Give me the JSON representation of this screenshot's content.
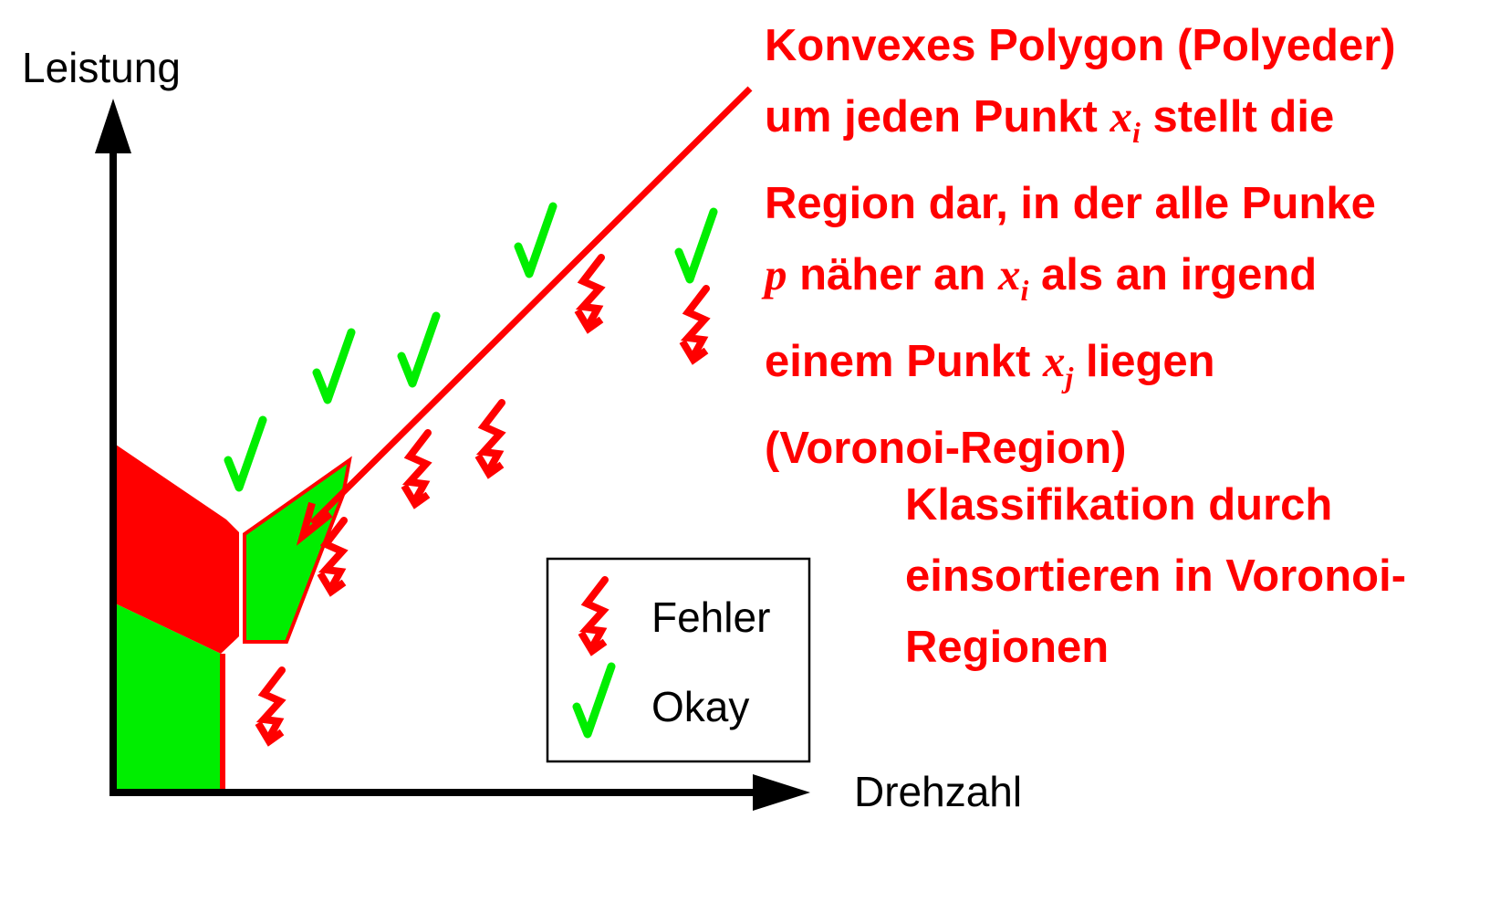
{
  "axes": {
    "y_label": "Leistung",
    "x_label": "Drehzahl"
  },
  "legend": {
    "fault_label": "Fehler",
    "ok_label": "Okay"
  },
  "annotation_voronoi": {
    "line1": "Konvexes Polygon (Polyeder)",
    "line2_a": "um jeden Punkt ",
    "line2_var": "x",
    "line2_sub": "i",
    "line2_b": " stellt die",
    "line3": "Region dar, in der alle Punke",
    "line4_var": "p",
    "line4_a": " näher an ",
    "line4_var2": "x",
    "line4_sub": "i",
    "line4_b": " als an irgend",
    "line5_a": "einem Punkt ",
    "line5_var": "x",
    "line5_sub": "j",
    "line5_b": " liegen",
    "line6": "(Voronoi-Region)"
  },
  "annotation_classification": {
    "line1": "Klassifikation durch",
    "line2": "einsortieren in Voronoi-",
    "line3": "Regionen"
  },
  "colors": {
    "fault": "#ff0000",
    "ok": "#00ee00",
    "axis": "#000000"
  }
}
